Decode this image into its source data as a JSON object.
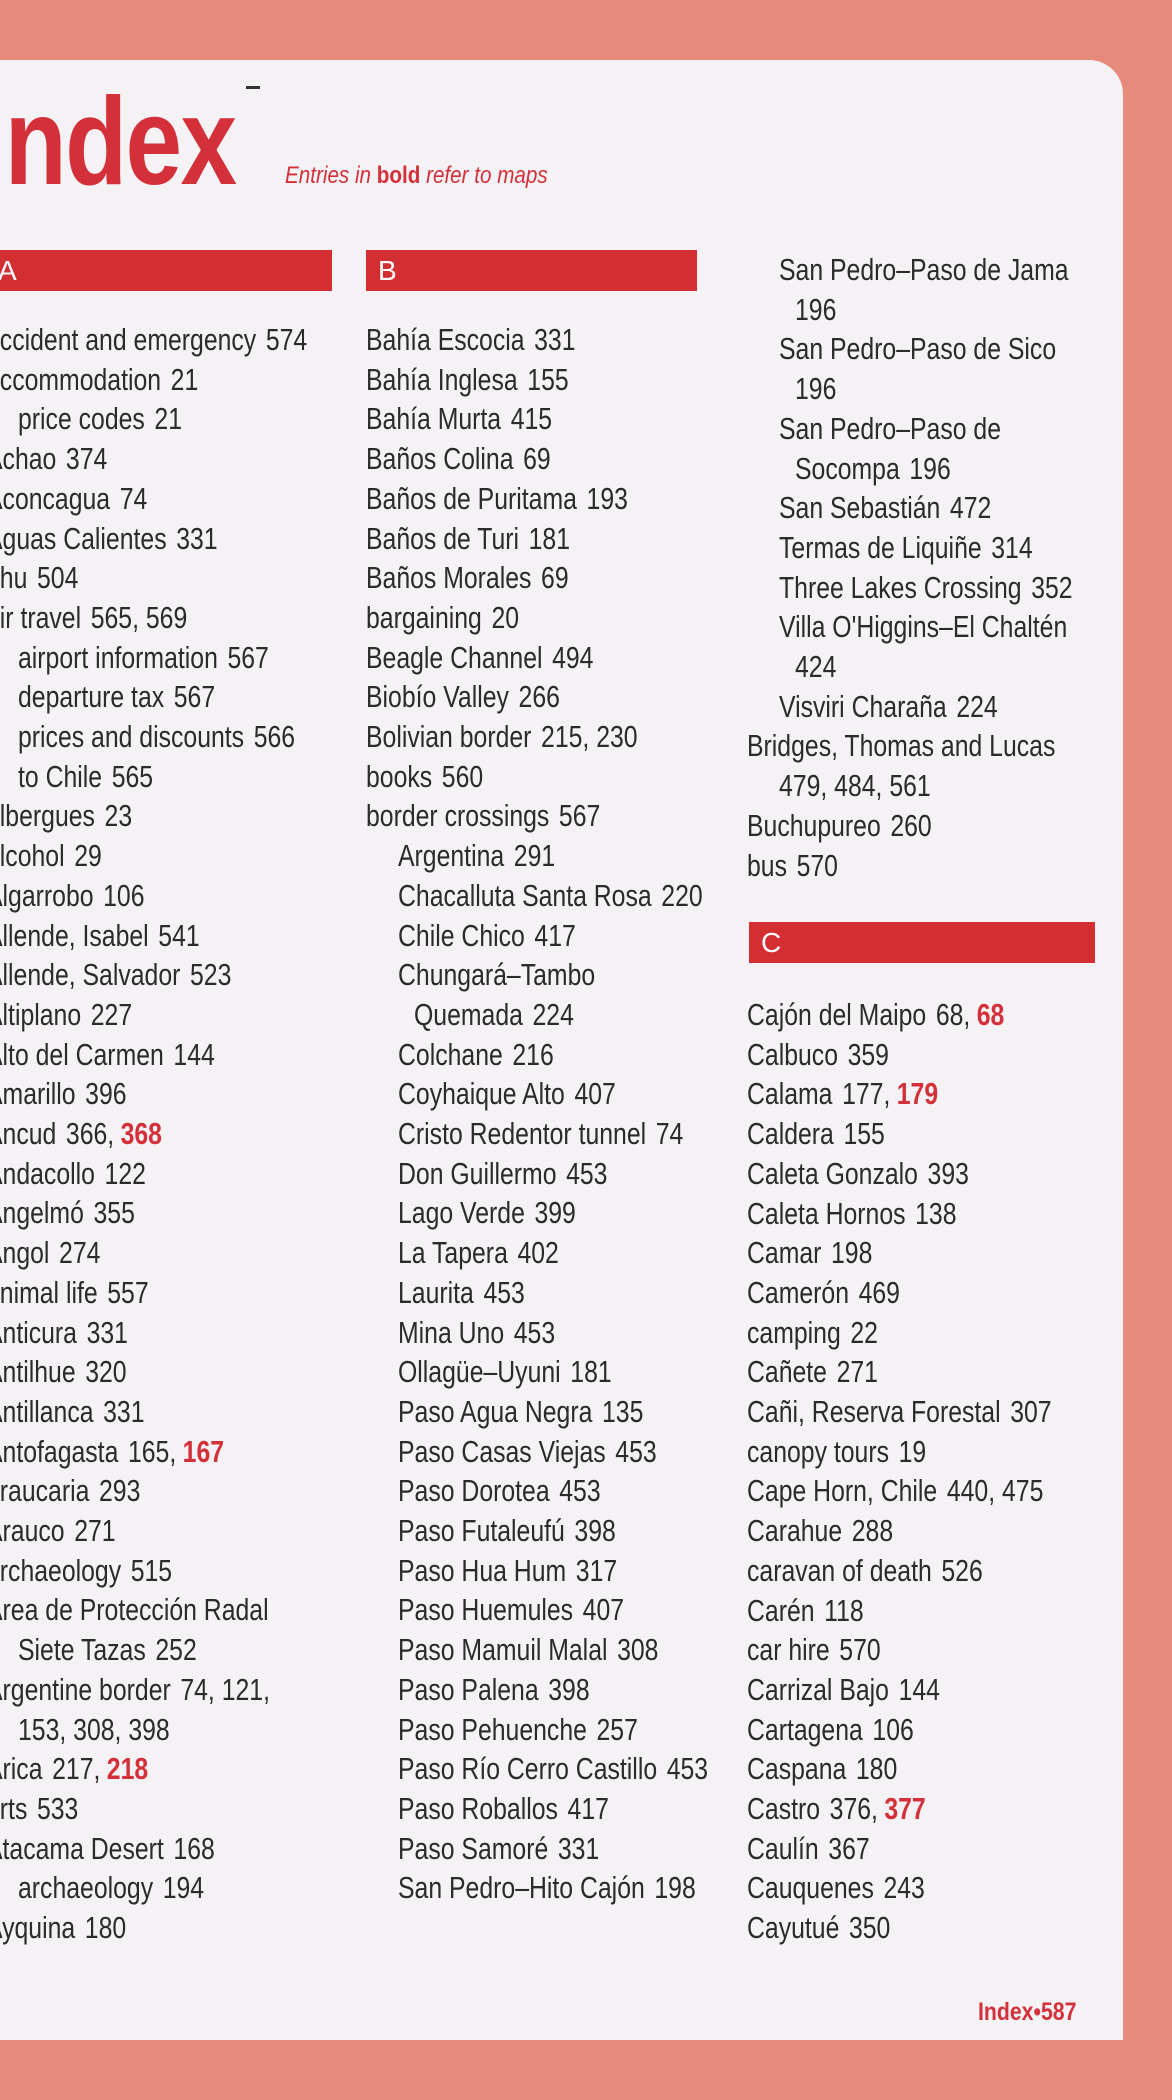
{
  "header": {
    "title": "Index",
    "subtitle_pre": "Entries in ",
    "subtitle_bold": "bold",
    "subtitle_post": " refer to maps"
  },
  "colors": {
    "accent": "#d3303a",
    "bar": "#d32f32",
    "background": "#e68b7b"
  },
  "sections": {
    "A": "A",
    "B": "B",
    "C": "C"
  },
  "columns": {
    "A": [
      {
        "label": "accident and emergency",
        "pages": "574",
        "level": 0
      },
      {
        "label": "accommodation",
        "pages": "21",
        "level": 0
      },
      {
        "label": "price codes",
        "pages": "21",
        "level": 1
      },
      {
        "label": "Achao",
        "pages": "374",
        "level": 0
      },
      {
        "label": "Aconcagua",
        "pages": "74",
        "level": 0
      },
      {
        "label": "Aguas Calientes",
        "pages": "331",
        "level": 0
      },
      {
        "label": "ahu",
        "pages": "504",
        "level": 0
      },
      {
        "label": "air travel",
        "pages": "565, 569",
        "level": 0
      },
      {
        "label": "airport information",
        "pages": "567",
        "level": 1
      },
      {
        "label": "departure tax",
        "pages": "567",
        "level": 1
      },
      {
        "label": "prices and discounts",
        "pages": "566",
        "level": 1
      },
      {
        "label": "to Chile",
        "pages": "565",
        "level": 1
      },
      {
        "label": "albergues",
        "pages": "23",
        "level": 0
      },
      {
        "label": "alcohol",
        "pages": "29",
        "level": 0
      },
      {
        "label": "Algarrobo",
        "pages": "106",
        "level": 0
      },
      {
        "label": "Allende, Isabel",
        "pages": "541",
        "level": 0
      },
      {
        "label": "Allende, Salvador",
        "pages": "523",
        "level": 0
      },
      {
        "label": "Altiplano",
        "pages": "227",
        "level": 0
      },
      {
        "label": "Alto del Carmen",
        "pages": "144",
        "level": 0
      },
      {
        "label": "Amarillo",
        "pages": "396",
        "level": 0
      },
      {
        "label": "Ancud",
        "pages": "366,",
        "map_pages": "368",
        "level": 0
      },
      {
        "label": "Andacollo",
        "pages": "122",
        "level": 0
      },
      {
        "label": "Angelmó",
        "pages": "355",
        "level": 0
      },
      {
        "label": "Angol",
        "pages": "274",
        "level": 0
      },
      {
        "label": "animal life",
        "pages": "557",
        "level": 0
      },
      {
        "label": "Anticura",
        "pages": "331",
        "level": 0
      },
      {
        "label": "Antilhue",
        "pages": "320",
        "level": 0
      },
      {
        "label": "Antillanca",
        "pages": "331",
        "level": 0
      },
      {
        "label": "Antofagasta",
        "pages": "165,",
        "map_pages": "167",
        "level": 0
      },
      {
        "label": "araucaria",
        "pages": "293",
        "level": 0
      },
      {
        "label": "Arauco",
        "pages": "271",
        "level": 0
      },
      {
        "label": "archaeology",
        "pages": "515",
        "level": 0
      },
      {
        "label": "Area de Protección Radal",
        "pages": "",
        "level": 0
      },
      {
        "label": "Siete Tazas",
        "pages": "252",
        "level": 1
      },
      {
        "label": "Argentine border",
        "pages": "74, 121,",
        "level": 0
      },
      {
        "label": "153, 308, 398",
        "pages": "",
        "level": 1
      },
      {
        "label": "Arica",
        "pages": "217,",
        "map_pages": "218",
        "level": 0
      },
      {
        "label": "arts",
        "pages": "533",
        "level": 0
      },
      {
        "label": "Atacama Desert",
        "pages": "168",
        "level": 0
      },
      {
        "label": "archaeology",
        "pages": "194",
        "level": 1
      },
      {
        "label": "Ayquina",
        "pages": "180",
        "level": 0
      }
    ],
    "B": [
      {
        "label": "Bahía Escocia",
        "pages": "331",
        "level": 0
      },
      {
        "label": "Bahía Inglesa",
        "pages": "155",
        "level": 0
      },
      {
        "label": "Bahía Murta",
        "pages": "415",
        "level": 0
      },
      {
        "label": "Baños Colina",
        "pages": "69",
        "level": 0
      },
      {
        "label": "Baños de Puritama",
        "pages": "193",
        "level": 0
      },
      {
        "label": "Baños de Turi",
        "pages": "181",
        "level": 0
      },
      {
        "label": "Baños Morales",
        "pages": "69",
        "level": 0
      },
      {
        "label": "bargaining",
        "pages": "20",
        "level": 0
      },
      {
        "label": "Beagle Channel",
        "pages": "494",
        "level": 0
      },
      {
        "label": "Biobío Valley",
        "pages": "266",
        "level": 0
      },
      {
        "label": "Bolivian border",
        "pages": "215, 230",
        "level": 0
      },
      {
        "label": "books",
        "pages": "560",
        "level": 0
      },
      {
        "label": "border crossings",
        "pages": "567",
        "level": 0
      },
      {
        "label": "Argentina",
        "pages": "291",
        "level": 1
      },
      {
        "label": "Chacalluta Santa Rosa",
        "pages": "220",
        "level": 1
      },
      {
        "label": "Chile Chico",
        "pages": "417",
        "level": 1
      },
      {
        "label": "Chungará–Tambo",
        "pages": "",
        "level": 1
      },
      {
        "label": "Quemada",
        "pages": "224",
        "level": 2
      },
      {
        "label": "Colchane",
        "pages": "216",
        "level": 1
      },
      {
        "label": "Coyhaique Alto",
        "pages": "407",
        "level": 1
      },
      {
        "label": "Cristo Redentor tunnel",
        "pages": "74",
        "level": 1
      },
      {
        "label": "Don Guillermo",
        "pages": "453",
        "level": 1
      },
      {
        "label": "Lago Verde",
        "pages": "399",
        "level": 1
      },
      {
        "label": "La Tapera",
        "pages": "402",
        "level": 1
      },
      {
        "label": "Laurita",
        "pages": "453",
        "level": 1
      },
      {
        "label": "Mina Uno",
        "pages": "453",
        "level": 1
      },
      {
        "label": "Ollagüe–Uyuni",
        "pages": "181",
        "level": 1
      },
      {
        "label": "Paso Agua Negra",
        "pages": "135",
        "level": 1
      },
      {
        "label": "Paso Casas Viejas",
        "pages": "453",
        "level": 1
      },
      {
        "label": "Paso Dorotea",
        "pages": "453",
        "level": 1
      },
      {
        "label": "Paso Futaleufú",
        "pages": "398",
        "level": 1
      },
      {
        "label": "Paso Hua Hum",
        "pages": "317",
        "level": 1
      },
      {
        "label": "Paso Huemules",
        "pages": "407",
        "level": 1
      },
      {
        "label": "Paso Mamuil Malal",
        "pages": "308",
        "level": 1
      },
      {
        "label": "Paso Palena",
        "pages": "398",
        "level": 1
      },
      {
        "label": "Paso Pehuenche",
        "pages": "257",
        "level": 1
      },
      {
        "label": "Paso Río Cerro Castillo",
        "pages": "453",
        "level": 1
      },
      {
        "label": "Paso Roballos",
        "pages": "417",
        "level": 1
      },
      {
        "label": "Paso Samoré",
        "pages": "331",
        "level": 1
      },
      {
        "label": "San Pedro–Hito Cajón",
        "pages": "198",
        "level": 1
      }
    ],
    "B_continued": [
      {
        "label": "San Pedro–Paso de Jama",
        "pages": "",
        "level": 1
      },
      {
        "label": "196",
        "pages": "",
        "level": 2
      },
      {
        "label": "San Pedro–Paso de Sico",
        "pages": "",
        "level": 1
      },
      {
        "label": "196",
        "pages": "",
        "level": 2
      },
      {
        "label": "San Pedro–Paso de",
        "pages": "",
        "level": 1
      },
      {
        "label": "Socompa",
        "pages": "196",
        "level": 2
      },
      {
        "label": "San Sebastián",
        "pages": "472",
        "level": 1
      },
      {
        "label": "Termas de Liquiñe",
        "pages": "314",
        "level": 1
      },
      {
        "label": "Three Lakes Crossing",
        "pages": "352",
        "level": 1
      },
      {
        "label": "Villa O'Higgins–El Chaltén",
        "pages": "",
        "level": 1
      },
      {
        "label": "424",
        "pages": "",
        "level": 2
      },
      {
        "label": "Visviri Charaña",
        "pages": "224",
        "level": 1
      },
      {
        "label": "Bridges, Thomas and Lucas",
        "pages": "",
        "level": 0
      },
      {
        "label": "479, 484, 561",
        "pages": "",
        "level": 1
      },
      {
        "label": "Buchupureo",
        "pages": "260",
        "level": 0
      },
      {
        "label": "bus",
        "pages": "570",
        "level": 0
      }
    ],
    "C": [
      {
        "label": "Cajón del Maipo",
        "pages": "68,",
        "map_pages": "68",
        "level": 0
      },
      {
        "label": "Calbuco",
        "pages": "359",
        "level": 0
      },
      {
        "label": "Calama",
        "pages": "177,",
        "map_pages": "179",
        "level": 0
      },
      {
        "label": "Caldera",
        "pages": "155",
        "level": 0
      },
      {
        "label": "Caleta Gonzalo",
        "pages": "393",
        "level": 0
      },
      {
        "label": "Caleta Hornos",
        "pages": "138",
        "level": 0
      },
      {
        "label": "Camar",
        "pages": "198",
        "level": 0
      },
      {
        "label": "Camerón",
        "pages": "469",
        "level": 0
      },
      {
        "label": "camping",
        "pages": "22",
        "level": 0
      },
      {
        "label": "Cañete",
        "pages": "271",
        "level": 0
      },
      {
        "label": "Cañi, Reserva Forestal",
        "pages": "307",
        "level": 0
      },
      {
        "label": "canopy tours",
        "pages": "19",
        "level": 0
      },
      {
        "label": "Cape Horn, Chile",
        "pages": "440, 475",
        "level": 0
      },
      {
        "label": "Carahue",
        "pages": "288",
        "level": 0
      },
      {
        "label": "caravan of death",
        "pages": "526",
        "level": 0
      },
      {
        "label": "Carén",
        "pages": "118",
        "level": 0
      },
      {
        "label": "car hire",
        "pages": "570",
        "level": 0
      },
      {
        "label": "Carrizal Bajo",
        "pages": "144",
        "level": 0
      },
      {
        "label": "Cartagena",
        "pages": "106",
        "level": 0
      },
      {
        "label": "Caspana",
        "pages": "180",
        "level": 0
      },
      {
        "label": "Castro",
        "pages": "376,",
        "map_pages": "377",
        "level": 0
      },
      {
        "label": "Caulín",
        "pages": "367",
        "level": 0
      },
      {
        "label": "Cauquenes",
        "pages": "243",
        "level": 0
      },
      {
        "label": "Cayutué",
        "pages": "350",
        "level": 0
      }
    ]
  },
  "footer": {
    "section": "Index",
    "separator": "•",
    "page_number": "587"
  }
}
